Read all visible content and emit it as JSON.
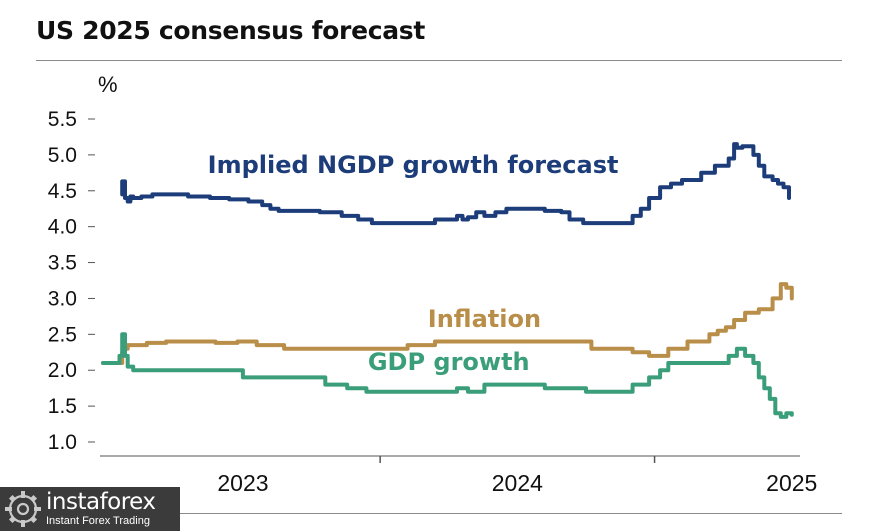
{
  "title": "US 2025 consensus forecast",
  "brand": {
    "name": "instaforex",
    "tagline": "Instant Forex Trading",
    "icon": "instaforex-logo-icon"
  },
  "colors": {
    "ngdp": "#1c3d7a",
    "inflation": "#b88e48",
    "gdp": "#3a9e7a",
    "axis_text": "#111111",
    "tick": "#555555"
  },
  "chart_data": {
    "type": "line",
    "title": "US 2025 consensus forecast",
    "ylabel": "%",
    "xlabel": "",
    "ylim": [
      1.0,
      5.5
    ],
    "xlim": [
      2022.49,
      2025.03
    ],
    "y_ticks": [
      1.0,
      1.5,
      2.0,
      2.5,
      3.0,
      3.5,
      4.0,
      4.5,
      5.0,
      5.5
    ],
    "y_tick_labels": [
      "1.0",
      "1.5",
      "2.0",
      "2.5",
      "3.0",
      "3.5",
      "4.0",
      "4.5",
      "5.0",
      "5.5"
    ],
    "x_ticks": [
      2023.0,
      2024.0,
      2025.0
    ],
    "x_tick_labels": [
      "2023",
      "2024",
      "2025"
    ],
    "x_minor_ticks": [
      2023.5,
      2024.5
    ],
    "grid": false,
    "legend": "inline labels",
    "series": [
      {
        "name": "Implied NGDP growth forecast",
        "label": "Implied NGDP growth forecast",
        "color_key": "ngdp",
        "x": [
          2022.56,
          2022.56,
          2022.57,
          2022.58,
          2022.59,
          2022.6,
          2022.63,
          2022.67,
          2022.73,
          2022.8,
          2022.88,
          2022.95,
          2023.02,
          2023.07,
          2023.1,
          2023.13,
          2023.2,
          2023.28,
          2023.36,
          2023.42,
          2023.47,
          2023.55,
          2023.63,
          2023.7,
          2023.78,
          2023.8,
          2023.82,
          2023.85,
          2023.88,
          2023.92,
          2023.96,
          2024.02,
          2024.1,
          2024.16,
          2024.19,
          2024.24,
          2024.28,
          2024.32,
          2024.37,
          2024.42,
          2024.45,
          2024.48,
          2024.52,
          2024.54,
          2024.56,
          2024.6,
          2024.67,
          2024.72,
          2024.77,
          2024.79,
          2024.8,
          2024.82,
          2024.86,
          2024.88,
          2024.9,
          2024.93,
          2024.95,
          2024.97,
          2024.99
        ],
        "values": [
          4.45,
          4.63,
          4.4,
          4.35,
          4.42,
          4.4,
          4.42,
          4.45,
          4.45,
          4.42,
          4.4,
          4.38,
          4.35,
          4.3,
          4.25,
          4.22,
          4.22,
          4.2,
          4.15,
          4.1,
          4.05,
          4.05,
          4.05,
          4.1,
          4.15,
          4.1,
          4.13,
          4.2,
          4.15,
          4.2,
          4.25,
          4.25,
          4.22,
          4.2,
          4.1,
          4.05,
          4.05,
          4.05,
          4.05,
          4.15,
          4.25,
          4.4,
          4.55,
          4.55,
          4.6,
          4.65,
          4.75,
          4.85,
          4.95,
          5.15,
          5.1,
          5.12,
          5.0,
          4.85,
          4.7,
          4.65,
          4.6,
          4.55,
          4.4
        ]
      },
      {
        "name": "Inflation",
        "label": "Inflation",
        "color_key": "inflation",
        "x": [
          2022.49,
          2022.55,
          2022.56,
          2022.57,
          2022.58,
          2022.6,
          2022.65,
          2022.72,
          2022.82,
          2022.9,
          2022.98,
          2023.05,
          2023.15,
          2023.3,
          2023.4,
          2023.5,
          2023.6,
          2023.7,
          2023.8,
          2023.95,
          2024.1,
          2024.2,
          2024.27,
          2024.35,
          2024.42,
          2024.48,
          2024.55,
          2024.62,
          2024.7,
          2024.73,
          2024.76,
          2024.79,
          2024.83,
          2024.88,
          2024.93,
          2024.96,
          2024.98,
          2025.0
        ],
        "values": [
          2.1,
          2.1,
          2.25,
          2.3,
          2.35,
          2.35,
          2.38,
          2.4,
          2.4,
          2.38,
          2.4,
          2.35,
          2.3,
          2.3,
          2.3,
          2.3,
          2.35,
          2.4,
          2.4,
          2.4,
          2.4,
          2.4,
          2.3,
          2.3,
          2.25,
          2.2,
          2.3,
          2.4,
          2.5,
          2.55,
          2.6,
          2.7,
          2.8,
          2.85,
          3.0,
          3.2,
          3.15,
          3.0
        ]
      },
      {
        "name": "GDP growth",
        "label": "GDP growth",
        "color_key": "gdp",
        "x": [
          2022.49,
          2022.54,
          2022.55,
          2022.56,
          2022.57,
          2022.58,
          2022.6,
          2022.7,
          2022.8,
          2022.95,
          2023.0,
          2023.1,
          2023.2,
          2023.3,
          2023.38,
          2023.45,
          2023.55,
          2023.65,
          2023.72,
          2023.78,
          2023.82,
          2023.88,
          2024.0,
          2024.1,
          2024.2,
          2024.25,
          2024.35,
          2024.42,
          2024.48,
          2024.52,
          2024.55,
          2024.6,
          2024.7,
          2024.77,
          2024.8,
          2024.83,
          2024.86,
          2024.88,
          2024.9,
          2024.92,
          2024.94,
          2024.96,
          2024.98,
          2025.0
        ],
        "values": [
          2.1,
          2.1,
          2.2,
          2.5,
          2.2,
          2.05,
          2.0,
          2.0,
          2.0,
          2.0,
          1.9,
          1.9,
          1.9,
          1.8,
          1.75,
          1.7,
          1.7,
          1.7,
          1.7,
          1.75,
          1.7,
          1.8,
          1.8,
          1.75,
          1.75,
          1.7,
          1.7,
          1.8,
          1.9,
          2.0,
          2.1,
          2.1,
          2.1,
          2.2,
          2.3,
          2.2,
          2.1,
          1.9,
          1.75,
          1.6,
          1.4,
          1.35,
          1.4,
          1.38
        ]
      }
    ],
    "annotations": [
      {
        "text": "Implied NGDP growth forecast",
        "series": "Implied NGDP growth forecast",
        "x": 2023.62,
        "y": 4.75
      },
      {
        "text": "Inflation",
        "series": "Inflation",
        "x": 2023.88,
        "y": 2.6
      },
      {
        "text": "GDP growth",
        "series": "GDP growth",
        "x": 2023.75,
        "y": 2.0
      }
    ]
  }
}
